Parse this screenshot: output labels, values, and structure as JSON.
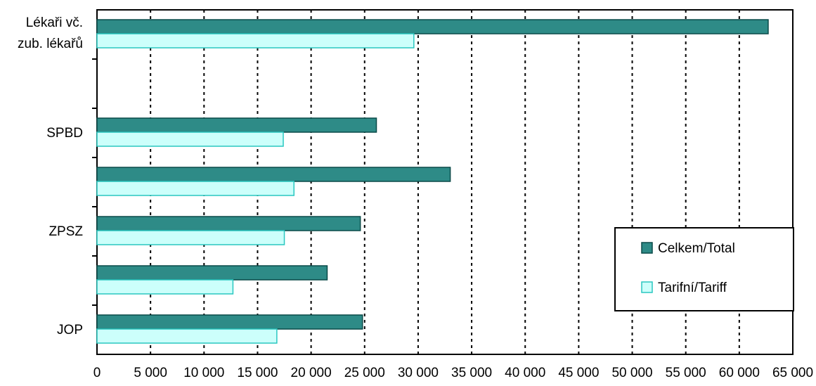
{
  "chart_data": {
    "type": "bar",
    "orientation": "horizontal",
    "categories": [
      {
        "label_lines": [
          "Lékaři vč.",
          "zub. lékařů"
        ]
      },
      {
        "label_lines": []
      },
      {
        "label_lines": [
          "SPBD"
        ]
      },
      {
        "label_lines": []
      },
      {
        "label_lines": [
          "ZPSZ"
        ]
      },
      {
        "label_lines": []
      },
      {
        "label_lines": [
          "JOP"
        ]
      }
    ],
    "series": [
      {
        "name": "Celkem/Total",
        "color": "#2e8b87",
        "values": [
          62700,
          null,
          26100,
          33000,
          24600,
          21500,
          24800
        ]
      },
      {
        "name": "Tarifní/Tariff",
        "color": "#ccfffb",
        "values": [
          29600,
          null,
          17400,
          18400,
          17500,
          12700,
          16800
        ]
      }
    ],
    "xlim": [
      0,
      65000
    ],
    "xticks": [
      0,
      5000,
      10000,
      15000,
      20000,
      25000,
      30000,
      35000,
      40000,
      45000,
      50000,
      55000,
      60000,
      65000
    ],
    "xtick_labels": [
      "0",
      "5 000",
      "10 000",
      "15 000",
      "20 000",
      "25 000",
      "30 000",
      "35 000",
      "40 000",
      "45 000",
      "50 000",
      "55 000",
      "60 000",
      "65 000"
    ],
    "grid": "vertical-dotted",
    "legend_position": "right-bottom",
    "title": "",
    "xlabel": "",
    "ylabel": ""
  }
}
